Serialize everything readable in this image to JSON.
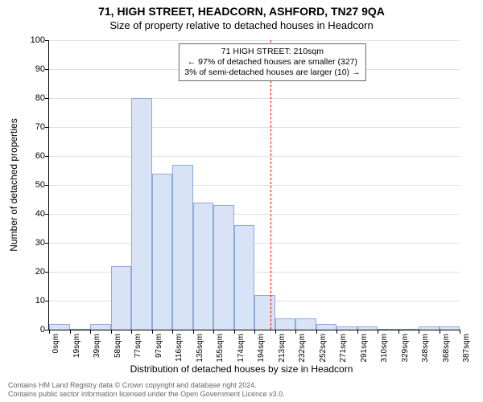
{
  "title": "71, HIGH STREET, HEADCORN, ASHFORD, TN27 9QA",
  "subtitle": "Size of property relative to detached houses in Headcorn",
  "chart": {
    "type": "histogram",
    "ylabel": "Number of detached properties",
    "xlabel": "Distribution of detached houses by size in Headcorn",
    "ylim": [
      0,
      100
    ],
    "yticks": [
      0,
      10,
      20,
      30,
      40,
      50,
      60,
      70,
      80,
      90,
      100
    ],
    "xticks": [
      "0sqm",
      "19sqm",
      "39sqm",
      "58sqm",
      "77sqm",
      "97sqm",
      "116sqm",
      "135sqm",
      "155sqm",
      "174sqm",
      "194sqm",
      "213sqm",
      "232sqm",
      "252sqm",
      "271sqm",
      "291sqm",
      "310sqm",
      "329sqm",
      "348sqm",
      "368sqm",
      "387sqm"
    ],
    "values": [
      2,
      0,
      2,
      22,
      80,
      54,
      57,
      44,
      43,
      36,
      12,
      4,
      4,
      2,
      1,
      1,
      0,
      0,
      1,
      1
    ],
    "bar_fill": "#d8e4f5",
    "bar_stroke": "#8faadc",
    "grid_color": "#e0e0e0",
    "background_color": "#ffffff",
    "reference_line": {
      "index": 10.8,
      "color": "#ff0000",
      "style": "dashed"
    },
    "annotation": {
      "lines": [
        "71 HIGH STREET: 210sqm",
        "← 97% of detached houses are smaller (327)",
        "3% of semi-detached houses are larger (10) →"
      ],
      "border_color": "#666666",
      "bg_color": "#ffffff",
      "fontsize": 10.5
    },
    "title_fontsize": 14,
    "subtitle_fontsize": 13,
    "label_fontsize": 12,
    "tick_fontsize": 11
  },
  "footer": {
    "line1": "Contains HM Land Registry data © Crown copyright and database right 2024.",
    "line2": "Contains public sector information licensed under the Open Government Licence v3.0."
  }
}
